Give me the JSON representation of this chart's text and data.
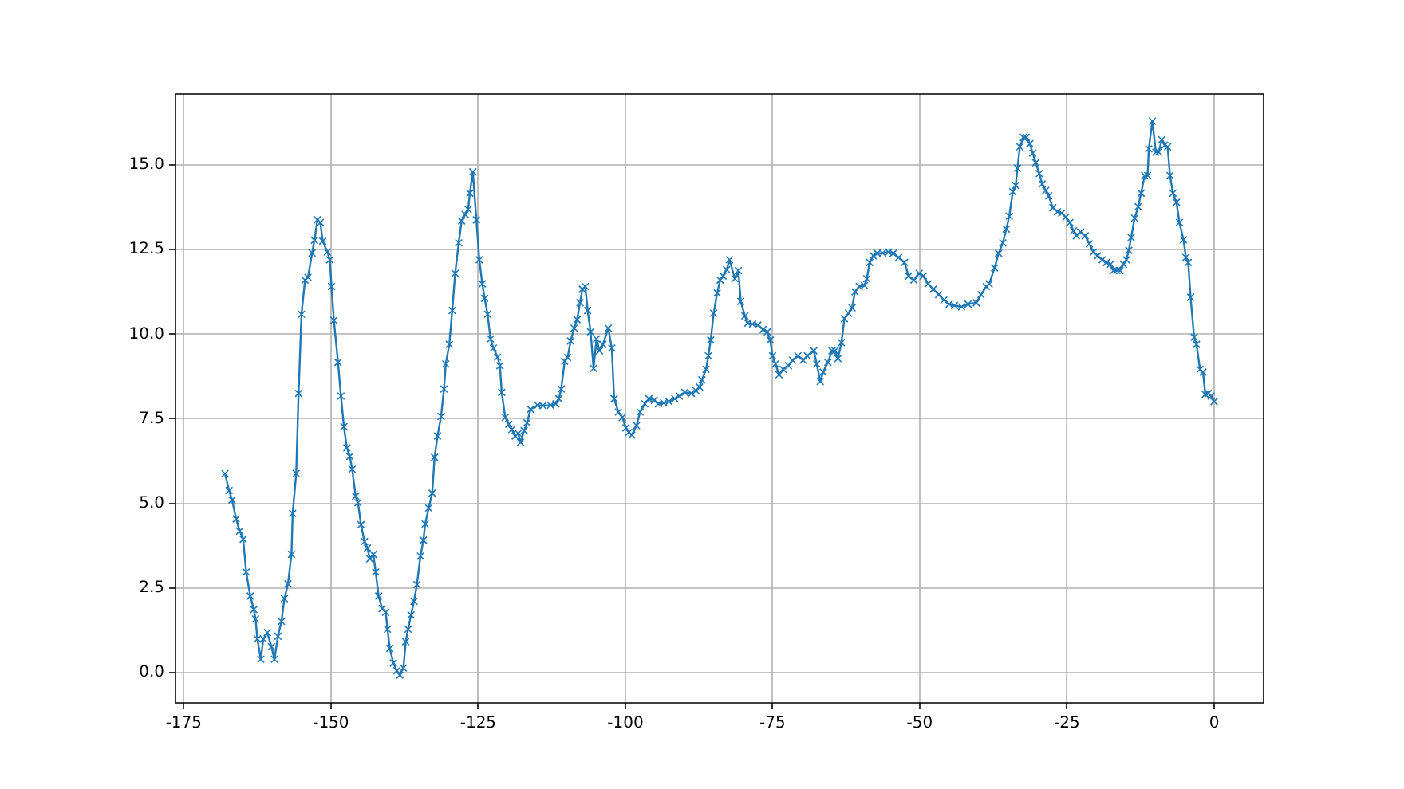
{
  "chart_data": {
    "type": "line",
    "color": "#1f77b4",
    "marker": "cross",
    "line_style": "solid",
    "grid": true,
    "legend": false,
    "xlim": [
      -176.4,
      8.4
    ],
    "ylim": [
      -0.9,
      17.1
    ],
    "xticks": [
      -175,
      -150,
      -125,
      -100,
      -75,
      -50,
      -25,
      0
    ],
    "yticks": [
      {
        "value": 0,
        "label": "0.0"
      },
      {
        "value": 2.5,
        "label": "2.5"
      },
      {
        "value": 5,
        "label": "5.0"
      },
      {
        "value": 7.5,
        "label": "7.5"
      },
      {
        "value": 10,
        "label": "10.0"
      },
      {
        "value": 12.5,
        "label": "12.5"
      },
      {
        "value": 15,
        "label": "15.0"
      }
    ],
    "x": [
      -168.0,
      -167.3,
      -166.8,
      -166.1,
      -165.5,
      -164.9,
      -164.4,
      -163.7,
      -163.1,
      -162.8,
      -162.5,
      -161.9,
      -161.5,
      -160.8,
      -160.1,
      -159.6,
      -159.0,
      -158.4,
      -157.9,
      -157.3,
      -156.7,
      -156.5,
      -155.9,
      -155.5,
      -155.0,
      -154.4,
      -153.9,
      -153.2,
      -152.8,
      -152.3,
      -151.8,
      -151.4,
      -150.6,
      -150.2,
      -149.9,
      -149.5,
      -148.8,
      -148.3,
      -147.8,
      -147.3,
      -146.8,
      -146.4,
      -145.8,
      -145.4,
      -144.9,
      -144.3,
      -143.8,
      -143.4,
      -142.8,
      -142.4,
      -141.9,
      -141.3,
      -140.7,
      -140.4,
      -140.0,
      -139.4,
      -138.8,
      -138.3,
      -137.7,
      -137.3,
      -136.9,
      -136.4,
      -135.9,
      -135.4,
      -134.8,
      -134.3,
      -134.0,
      -133.4,
      -132.8,
      -132.4,
      -131.9,
      -131.3,
      -130.8,
      -130.5,
      -129.9,
      -129.4,
      -128.9,
      -128.3,
      -127.8,
      -127.2,
      -126.7,
      -126.4,
      -125.9,
      -125.3,
      -124.8,
      -124.3,
      -123.9,
      -123.4,
      -122.9,
      -122.4,
      -121.7,
      -121.3,
      -121.0,
      -120.4,
      -119.8,
      -119.3,
      -118.7,
      -118.2,
      -117.8,
      -117.2,
      -116.7,
      -116.1,
      -114.9,
      -114.0,
      -112.7,
      -111.8,
      -111.3,
      -110.9,
      -110.3,
      -109.8,
      -109.3,
      -108.7,
      -108.2,
      -107.7,
      -107.3,
      -106.8,
      -106.4,
      -105.9,
      -105.4,
      -104.9,
      -104.4,
      -103.8,
      -102.9,
      -102.3,
      -101.9,
      -101.2,
      -100.5,
      -99.9,
      -99.4,
      -98.9,
      -98.1,
      -97.5,
      -96.7,
      -96.0,
      -95.1,
      -94.4,
      -93.5,
      -92.6,
      -91.6,
      -90.8,
      -89.9,
      -88.8,
      -88.0,
      -87.4,
      -87.0,
      -86.3,
      -85.9,
      -85.5,
      -85.0,
      -84.4,
      -83.9,
      -83.4,
      -82.8,
      -82.3,
      -81.4,
      -80.8,
      -80.4,
      -79.7,
      -79.2,
      -78.4,
      -77.5,
      -76.6,
      -75.9,
      -75.4,
      -75.0,
      -74.5,
      -73.9,
      -73.2,
      -72.3,
      -71.6,
      -70.7,
      -69.8,
      -69.1,
      -68.0,
      -67.5,
      -66.9,
      -66.4,
      -65.6,
      -64.9,
      -64.4,
      -63.9,
      -63.3,
      -62.8,
      -62.1,
      -61.5,
      -61.0,
      -60.3,
      -59.4,
      -59.0,
      -58.5,
      -57.9,
      -57.2,
      -56.3,
      -55.3,
      -54.5,
      -53.6,
      -52.6,
      -51.9,
      -51.0,
      -50.1,
      -49.4,
      -48.6,
      -47.7,
      -46.8,
      -45.9,
      -45.0,
      -44.1,
      -42.9,
      -41.8,
      -40.4,
      -39.6,
      -38.7,
      -38.2,
      -37.3,
      -36.6,
      -35.9,
      -35.3,
      -34.8,
      -34.2,
      -33.7,
      -33.4,
      -33.0,
      -32.4,
      -31.9,
      -31.3,
      -30.8,
      -30.3,
      -29.7,
      -29.2,
      -28.6,
      -28.1,
      -27.4,
      -26.6,
      -25.9,
      -25.2,
      -24.5,
      -23.9,
      -23.4,
      -22.7,
      -21.9,
      -21.2,
      -20.5,
      -19.8,
      -19.0,
      -18.3,
      -17.6,
      -17.1,
      -16.5,
      -16.0,
      -15.4,
      -14.9,
      -14.5,
      -14.1,
      -13.5,
      -12.9,
      -12.4,
      -11.8,
      -11.3,
      -11.1,
      -10.5,
      -9.9,
      -9.4,
      -8.9,
      -8.4,
      -7.9,
      -7.5,
      -7.0,
      -6.4,
      -5.9,
      -5.2,
      -4.8,
      -4.4,
      -4.0,
      -3.4,
      -3.0,
      -2.4,
      -1.9,
      -1.5,
      -1.0,
      -0.5,
      0.0
    ],
    "values": [
      5.88,
      5.38,
      5.1,
      4.54,
      4.18,
      3.94,
      2.97,
      2.26,
      1.86,
      1.58,
      0.99,
      0.39,
      0.99,
      1.18,
      0.76,
      0.39,
      1.07,
      1.51,
      2.18,
      2.62,
      3.49,
      4.7,
      5.88,
      8.25,
      10.59,
      11.6,
      11.68,
      12.4,
      12.78,
      13.38,
      13.3,
      12.75,
      12.43,
      12.2,
      11.41,
      10.41,
      9.17,
      8.17,
      7.27,
      6.64,
      6.39,
      6.01,
      5.21,
      5.02,
      4.37,
      3.87,
      3.68,
      3.36,
      3.49,
      2.97,
      2.26,
      1.89,
      1.78,
      1.28,
      0.71,
      0.28,
      0.05,
      -0.08,
      0.13,
      0.91,
      1.28,
      1.7,
      2.1,
      2.6,
      3.44,
      3.91,
      4.39,
      4.86,
      5.3,
      6.36,
      6.99,
      7.57,
      8.38,
      9.12,
      9.7,
      10.7,
      11.8,
      12.7,
      13.35,
      13.54,
      13.69,
      14.17,
      14.8,
      13.38,
      12.2,
      11.49,
      11.06,
      10.59,
      9.86,
      9.59,
      9.32,
      9.07,
      8.28,
      7.54,
      7.34,
      7.18,
      6.99,
      7.07,
      6.8,
      7.15,
      7.38,
      7.78,
      7.9,
      7.89,
      7.9,
      7.94,
      8.09,
      8.38,
      9.2,
      9.31,
      9.8,
      10.18,
      10.43,
      10.93,
      11.33,
      11.41,
      10.7,
      10.07,
      8.99,
      9.86,
      9.51,
      9.7,
      10.18,
      9.59,
      8.09,
      7.7,
      7.54,
      7.23,
      7.1,
      7.02,
      7.3,
      7.7,
      7.94,
      8.09,
      8.05,
      7.94,
      7.97,
      8.01,
      8.09,
      8.17,
      8.28,
      8.25,
      8.33,
      8.44,
      8.65,
      8.96,
      9.36,
      9.83,
      10.62,
      11.22,
      11.6,
      11.72,
      11.91,
      12.2,
      11.64,
      11.88,
      10.97,
      10.54,
      10.33,
      10.3,
      10.27,
      10.14,
      10.07,
      9.83,
      9.36,
      9.12,
      8.8,
      8.96,
      9.07,
      9.23,
      9.36,
      9.23,
      9.36,
      9.51,
      9.12,
      8.6,
      8.88,
      9.17,
      9.51,
      9.51,
      9.28,
      9.75,
      10.46,
      10.62,
      10.78,
      11.25,
      11.41,
      11.44,
      11.64,
      12.12,
      12.32,
      12.39,
      12.4,
      12.43,
      12.39,
      12.27,
      12.12,
      11.72,
      11.6,
      11.8,
      11.72,
      11.49,
      11.33,
      11.17,
      11.01,
      10.89,
      10.85,
      10.81,
      10.89,
      10.93,
      11.17,
      11.41,
      11.49,
      11.96,
      12.39,
      12.7,
      13.11,
      13.49,
      14.21,
      14.4,
      14.91,
      15.54,
      15.82,
      15.82,
      15.63,
      15.35,
      15.07,
      14.75,
      14.44,
      14.25,
      14.09,
      13.74,
      13.62,
      13.58,
      13.46,
      13.3,
      13.06,
      12.91,
      13.02,
      12.91,
      12.67,
      12.43,
      12.32,
      12.2,
      12.12,
      12.07,
      11.88,
      11.88,
      11.88,
      12.07,
      12.2,
      12.48,
      12.86,
      13.43,
      13.77,
      14.17,
      14.69,
      14.69,
      15.48,
      16.3,
      15.38,
      15.38,
      15.75,
      15.59,
      15.54,
      14.69,
      14.17,
      13.9,
      13.3,
      12.79,
      12.27,
      12.12,
      11.09,
      9.91,
      9.7,
      8.96,
      8.88,
      8.22,
      8.25,
      8.17,
      8.01
    ]
  }
}
